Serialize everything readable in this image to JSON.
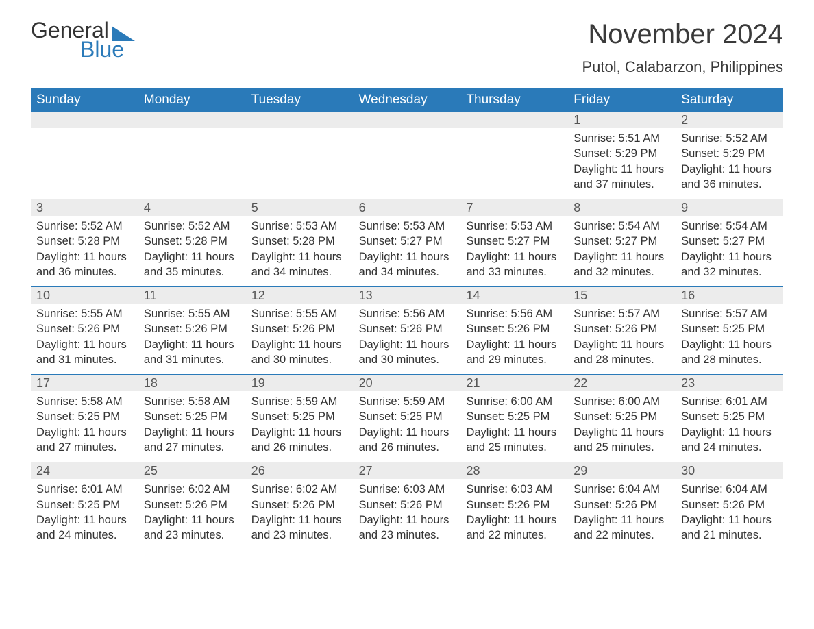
{
  "brand": {
    "word1": "General",
    "word2": "Blue"
  },
  "title": "November 2024",
  "location": "Putol, Calabarzon, Philippines",
  "colors": {
    "brand_blue": "#2a7ab9",
    "header_bg": "#2a7ab9",
    "header_text": "#ffffff",
    "daynum_bg": "#ececec",
    "week_border": "#2a7ab9",
    "page_bg": "#ffffff",
    "body_text": "#333333"
  },
  "days_of_week": [
    "Sunday",
    "Monday",
    "Tuesday",
    "Wednesday",
    "Thursday",
    "Friday",
    "Saturday"
  ],
  "weeks": [
    [
      null,
      null,
      null,
      null,
      null,
      {
        "n": "1",
        "sunrise": "5:51 AM",
        "sunset": "5:29 PM",
        "daylight": "11 hours and 37 minutes."
      },
      {
        "n": "2",
        "sunrise": "5:52 AM",
        "sunset": "5:29 PM",
        "daylight": "11 hours and 36 minutes."
      }
    ],
    [
      {
        "n": "3",
        "sunrise": "5:52 AM",
        "sunset": "5:28 PM",
        "daylight": "11 hours and 36 minutes."
      },
      {
        "n": "4",
        "sunrise": "5:52 AM",
        "sunset": "5:28 PM",
        "daylight": "11 hours and 35 minutes."
      },
      {
        "n": "5",
        "sunrise": "5:53 AM",
        "sunset": "5:28 PM",
        "daylight": "11 hours and 34 minutes."
      },
      {
        "n": "6",
        "sunrise": "5:53 AM",
        "sunset": "5:27 PM",
        "daylight": "11 hours and 34 minutes."
      },
      {
        "n": "7",
        "sunrise": "5:53 AM",
        "sunset": "5:27 PM",
        "daylight": "11 hours and 33 minutes."
      },
      {
        "n": "8",
        "sunrise": "5:54 AM",
        "sunset": "5:27 PM",
        "daylight": "11 hours and 32 minutes."
      },
      {
        "n": "9",
        "sunrise": "5:54 AM",
        "sunset": "5:27 PM",
        "daylight": "11 hours and 32 minutes."
      }
    ],
    [
      {
        "n": "10",
        "sunrise": "5:55 AM",
        "sunset": "5:26 PM",
        "daylight": "11 hours and 31 minutes."
      },
      {
        "n": "11",
        "sunrise": "5:55 AM",
        "sunset": "5:26 PM",
        "daylight": "11 hours and 31 minutes."
      },
      {
        "n": "12",
        "sunrise": "5:55 AM",
        "sunset": "5:26 PM",
        "daylight": "11 hours and 30 minutes."
      },
      {
        "n": "13",
        "sunrise": "5:56 AM",
        "sunset": "5:26 PM",
        "daylight": "11 hours and 30 minutes."
      },
      {
        "n": "14",
        "sunrise": "5:56 AM",
        "sunset": "5:26 PM",
        "daylight": "11 hours and 29 minutes."
      },
      {
        "n": "15",
        "sunrise": "5:57 AM",
        "sunset": "5:26 PM",
        "daylight": "11 hours and 28 minutes."
      },
      {
        "n": "16",
        "sunrise": "5:57 AM",
        "sunset": "5:25 PM",
        "daylight": "11 hours and 28 minutes."
      }
    ],
    [
      {
        "n": "17",
        "sunrise": "5:58 AM",
        "sunset": "5:25 PM",
        "daylight": "11 hours and 27 minutes."
      },
      {
        "n": "18",
        "sunrise": "5:58 AM",
        "sunset": "5:25 PM",
        "daylight": "11 hours and 27 minutes."
      },
      {
        "n": "19",
        "sunrise": "5:59 AM",
        "sunset": "5:25 PM",
        "daylight": "11 hours and 26 minutes."
      },
      {
        "n": "20",
        "sunrise": "5:59 AM",
        "sunset": "5:25 PM",
        "daylight": "11 hours and 26 minutes."
      },
      {
        "n": "21",
        "sunrise": "6:00 AM",
        "sunset": "5:25 PM",
        "daylight": "11 hours and 25 minutes."
      },
      {
        "n": "22",
        "sunrise": "6:00 AM",
        "sunset": "5:25 PM",
        "daylight": "11 hours and 25 minutes."
      },
      {
        "n": "23",
        "sunrise": "6:01 AM",
        "sunset": "5:25 PM",
        "daylight": "11 hours and 24 minutes."
      }
    ],
    [
      {
        "n": "24",
        "sunrise": "6:01 AM",
        "sunset": "5:25 PM",
        "daylight": "11 hours and 24 minutes."
      },
      {
        "n": "25",
        "sunrise": "6:02 AM",
        "sunset": "5:26 PM",
        "daylight": "11 hours and 23 minutes."
      },
      {
        "n": "26",
        "sunrise": "6:02 AM",
        "sunset": "5:26 PM",
        "daylight": "11 hours and 23 minutes."
      },
      {
        "n": "27",
        "sunrise": "6:03 AM",
        "sunset": "5:26 PM",
        "daylight": "11 hours and 23 minutes."
      },
      {
        "n": "28",
        "sunrise": "6:03 AM",
        "sunset": "5:26 PM",
        "daylight": "11 hours and 22 minutes."
      },
      {
        "n": "29",
        "sunrise": "6:04 AM",
        "sunset": "5:26 PM",
        "daylight": "11 hours and 22 minutes."
      },
      {
        "n": "30",
        "sunrise": "6:04 AM",
        "sunset": "5:26 PM",
        "daylight": "11 hours and 21 minutes."
      }
    ]
  ],
  "labels": {
    "sunrise": "Sunrise:",
    "sunset": "Sunset:",
    "daylight": "Daylight:"
  }
}
